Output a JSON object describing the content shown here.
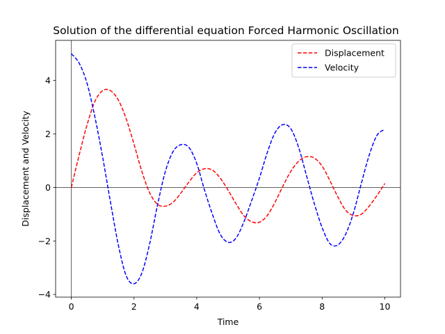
{
  "chart_data": {
    "type": "line",
    "title": "Solution of the differential equation Forced Harmonic Oscillation",
    "xlabel": "Time",
    "ylabel": "Displacement and Velocity",
    "xlim": [
      -0.5,
      10.5
    ],
    "ylim": [
      -4.1,
      5.5
    ],
    "xticks": [
      0,
      2,
      4,
      6,
      8,
      10
    ],
    "yticks": [
      -4,
      -2,
      0,
      2,
      4
    ],
    "xtick_labels": [
      "0",
      "2",
      "4",
      "6",
      "8",
      "10"
    ],
    "ytick_labels": [
      "−4",
      "−2",
      "0",
      "2",
      "4"
    ],
    "reference_lines": {
      "x": 0,
      "y": 0
    },
    "grid": false,
    "legend_position": "top-right",
    "series": [
      {
        "name": "Displacement",
        "color": "#ff0000",
        "linestyle": "dashed",
        "x": [
          0,
          0.25,
          0.5,
          0.75,
          1.0,
          1.25,
          1.5,
          1.75,
          2.0,
          2.25,
          2.5,
          2.75,
          3.0,
          3.25,
          3.5,
          3.75,
          4.0,
          4.25,
          4.5,
          4.75,
          5.0,
          5.25,
          5.5,
          5.75,
          6.0,
          6.25,
          6.5,
          6.75,
          7.0,
          7.25,
          7.5,
          7.75,
          8.0,
          8.25,
          8.5,
          8.75,
          9.0,
          9.25,
          9.5,
          9.75,
          10.0
        ],
        "y": [
          0.0,
          1.21,
          2.33,
          3.21,
          3.62,
          3.62,
          3.27,
          2.57,
          1.62,
          0.6,
          -0.2,
          -0.63,
          -0.7,
          -0.55,
          -0.2,
          0.2,
          0.55,
          0.7,
          0.65,
          0.35,
          -0.1,
          -0.6,
          -1.05,
          -1.28,
          -1.3,
          -1.05,
          -0.55,
          0.05,
          0.6,
          0.98,
          1.15,
          1.1,
          0.8,
          0.25,
          -0.35,
          -0.85,
          -1.05,
          -1.0,
          -0.7,
          -0.3,
          0.15
        ]
      },
      {
        "name": "Velocity",
        "color": "#0000ff",
        "linestyle": "dashed",
        "x": [
          0,
          0.25,
          0.5,
          0.75,
          1.0,
          1.25,
          1.5,
          1.75,
          2.0,
          2.25,
          2.5,
          2.75,
          3.0,
          3.25,
          3.5,
          3.75,
          4.0,
          4.25,
          4.5,
          4.75,
          5.0,
          5.25,
          5.5,
          5.75,
          6.0,
          6.25,
          6.5,
          6.75,
          7.0,
          7.25,
          7.5,
          7.75,
          8.0,
          8.25,
          8.5,
          8.75,
          9.0,
          9.25,
          9.5,
          9.75,
          10.0
        ],
        "y": [
          5.0,
          4.65,
          3.9,
          2.65,
          1.13,
          -0.55,
          -2.15,
          -3.3,
          -3.6,
          -3.2,
          -2.1,
          -0.65,
          0.6,
          1.35,
          1.6,
          1.5,
          0.9,
          -0.1,
          -1.0,
          -1.75,
          -2.05,
          -1.9,
          -1.3,
          -0.5,
          0.35,
          1.3,
          2.05,
          2.35,
          2.2,
          1.5,
          0.45,
          -0.6,
          -1.5,
          -2.1,
          -2.15,
          -1.75,
          -0.95,
          0.15,
          1.2,
          1.95,
          2.17
        ]
      }
    ]
  }
}
